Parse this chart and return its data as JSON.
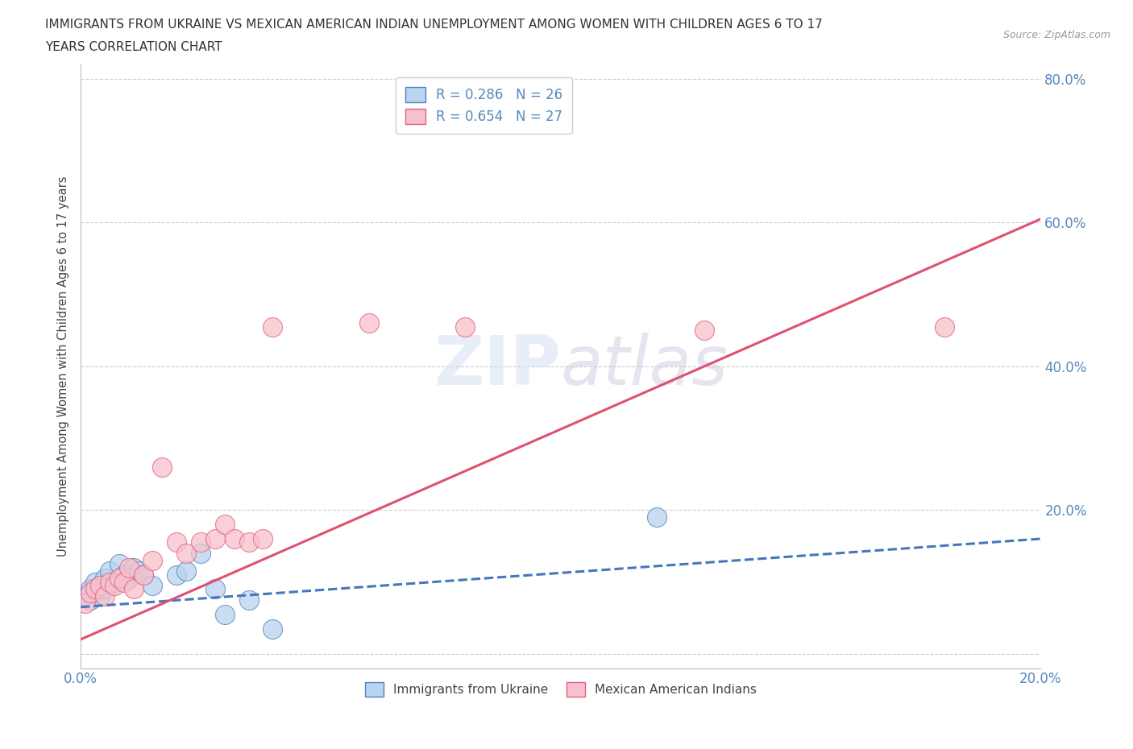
{
  "title_line1": "IMMIGRANTS FROM UKRAINE VS MEXICAN AMERICAN INDIAN UNEMPLOYMENT AMONG WOMEN WITH CHILDREN AGES 6 TO 17",
  "title_line2": "YEARS CORRELATION CHART",
  "source": "Source: ZipAtlas.com",
  "ylabel_label": "Unemployment Among Women with Children Ages 6 to 17 years",
  "r_ukraine": 0.286,
  "n_ukraine": 26,
  "r_mexican": 0.654,
  "n_mexican": 27,
  "xlim": [
    0.0,
    0.2
  ],
  "ylim": [
    -0.02,
    0.82
  ],
  "xticks": [
    0.0,
    0.04,
    0.08,
    0.12,
    0.16,
    0.2
  ],
  "yticks": [
    0.0,
    0.2,
    0.4,
    0.6,
    0.8
  ],
  "xtick_labels": [
    "0.0%",
    "",
    "",
    "",
    "",
    "20.0%"
  ],
  "ytick_labels": [
    "",
    "20.0%",
    "40.0%",
    "60.0%",
    "80.0%"
  ],
  "grid_color": "#cccccc",
  "background_color": "#ffffff",
  "ukraine_fill": "#b8d4f0",
  "ukraine_edge": "#5580bb",
  "mexican_fill": "#f8c0cc",
  "mexican_edge": "#e06080",
  "ukraine_line_color": "#4477bb",
  "mexican_line_color": "#e05070",
  "ukraine_scatter_x": [
    0.001,
    0.002,
    0.002,
    0.003,
    0.003,
    0.004,
    0.004,
    0.005,
    0.005,
    0.006,
    0.007,
    0.008,
    0.009,
    0.01,
    0.011,
    0.012,
    0.013,
    0.015,
    0.02,
    0.022,
    0.025,
    0.028,
    0.03,
    0.035,
    0.04,
    0.12
  ],
  "ukraine_scatter_y": [
    0.08,
    0.075,
    0.09,
    0.085,
    0.1,
    0.08,
    0.095,
    0.09,
    0.105,
    0.115,
    0.1,
    0.125,
    0.11,
    0.105,
    0.12,
    0.115,
    0.11,
    0.095,
    0.11,
    0.115,
    0.14,
    0.09,
    0.055,
    0.075,
    0.035,
    0.19
  ],
  "mexican_scatter_x": [
    0.001,
    0.002,
    0.003,
    0.004,
    0.005,
    0.006,
    0.007,
    0.008,
    0.009,
    0.01,
    0.011,
    0.013,
    0.015,
    0.017,
    0.02,
    0.022,
    0.025,
    0.028,
    0.03,
    0.032,
    0.035,
    0.038,
    0.04,
    0.06,
    0.08,
    0.13,
    0.18
  ],
  "mexican_scatter_y": [
    0.07,
    0.085,
    0.09,
    0.095,
    0.08,
    0.1,
    0.095,
    0.105,
    0.1,
    0.12,
    0.09,
    0.11,
    0.13,
    0.26,
    0.155,
    0.14,
    0.155,
    0.16,
    0.18,
    0.16,
    0.155,
    0.16,
    0.455,
    0.46,
    0.455,
    0.45,
    0.455
  ],
  "ukraine_trend_x": [
    0.0,
    0.2
  ],
  "ukraine_trend_y": [
    0.065,
    0.16
  ],
  "mexican_trend_x": [
    0.0,
    0.2
  ],
  "mexican_trend_y": [
    0.02,
    0.605
  ]
}
